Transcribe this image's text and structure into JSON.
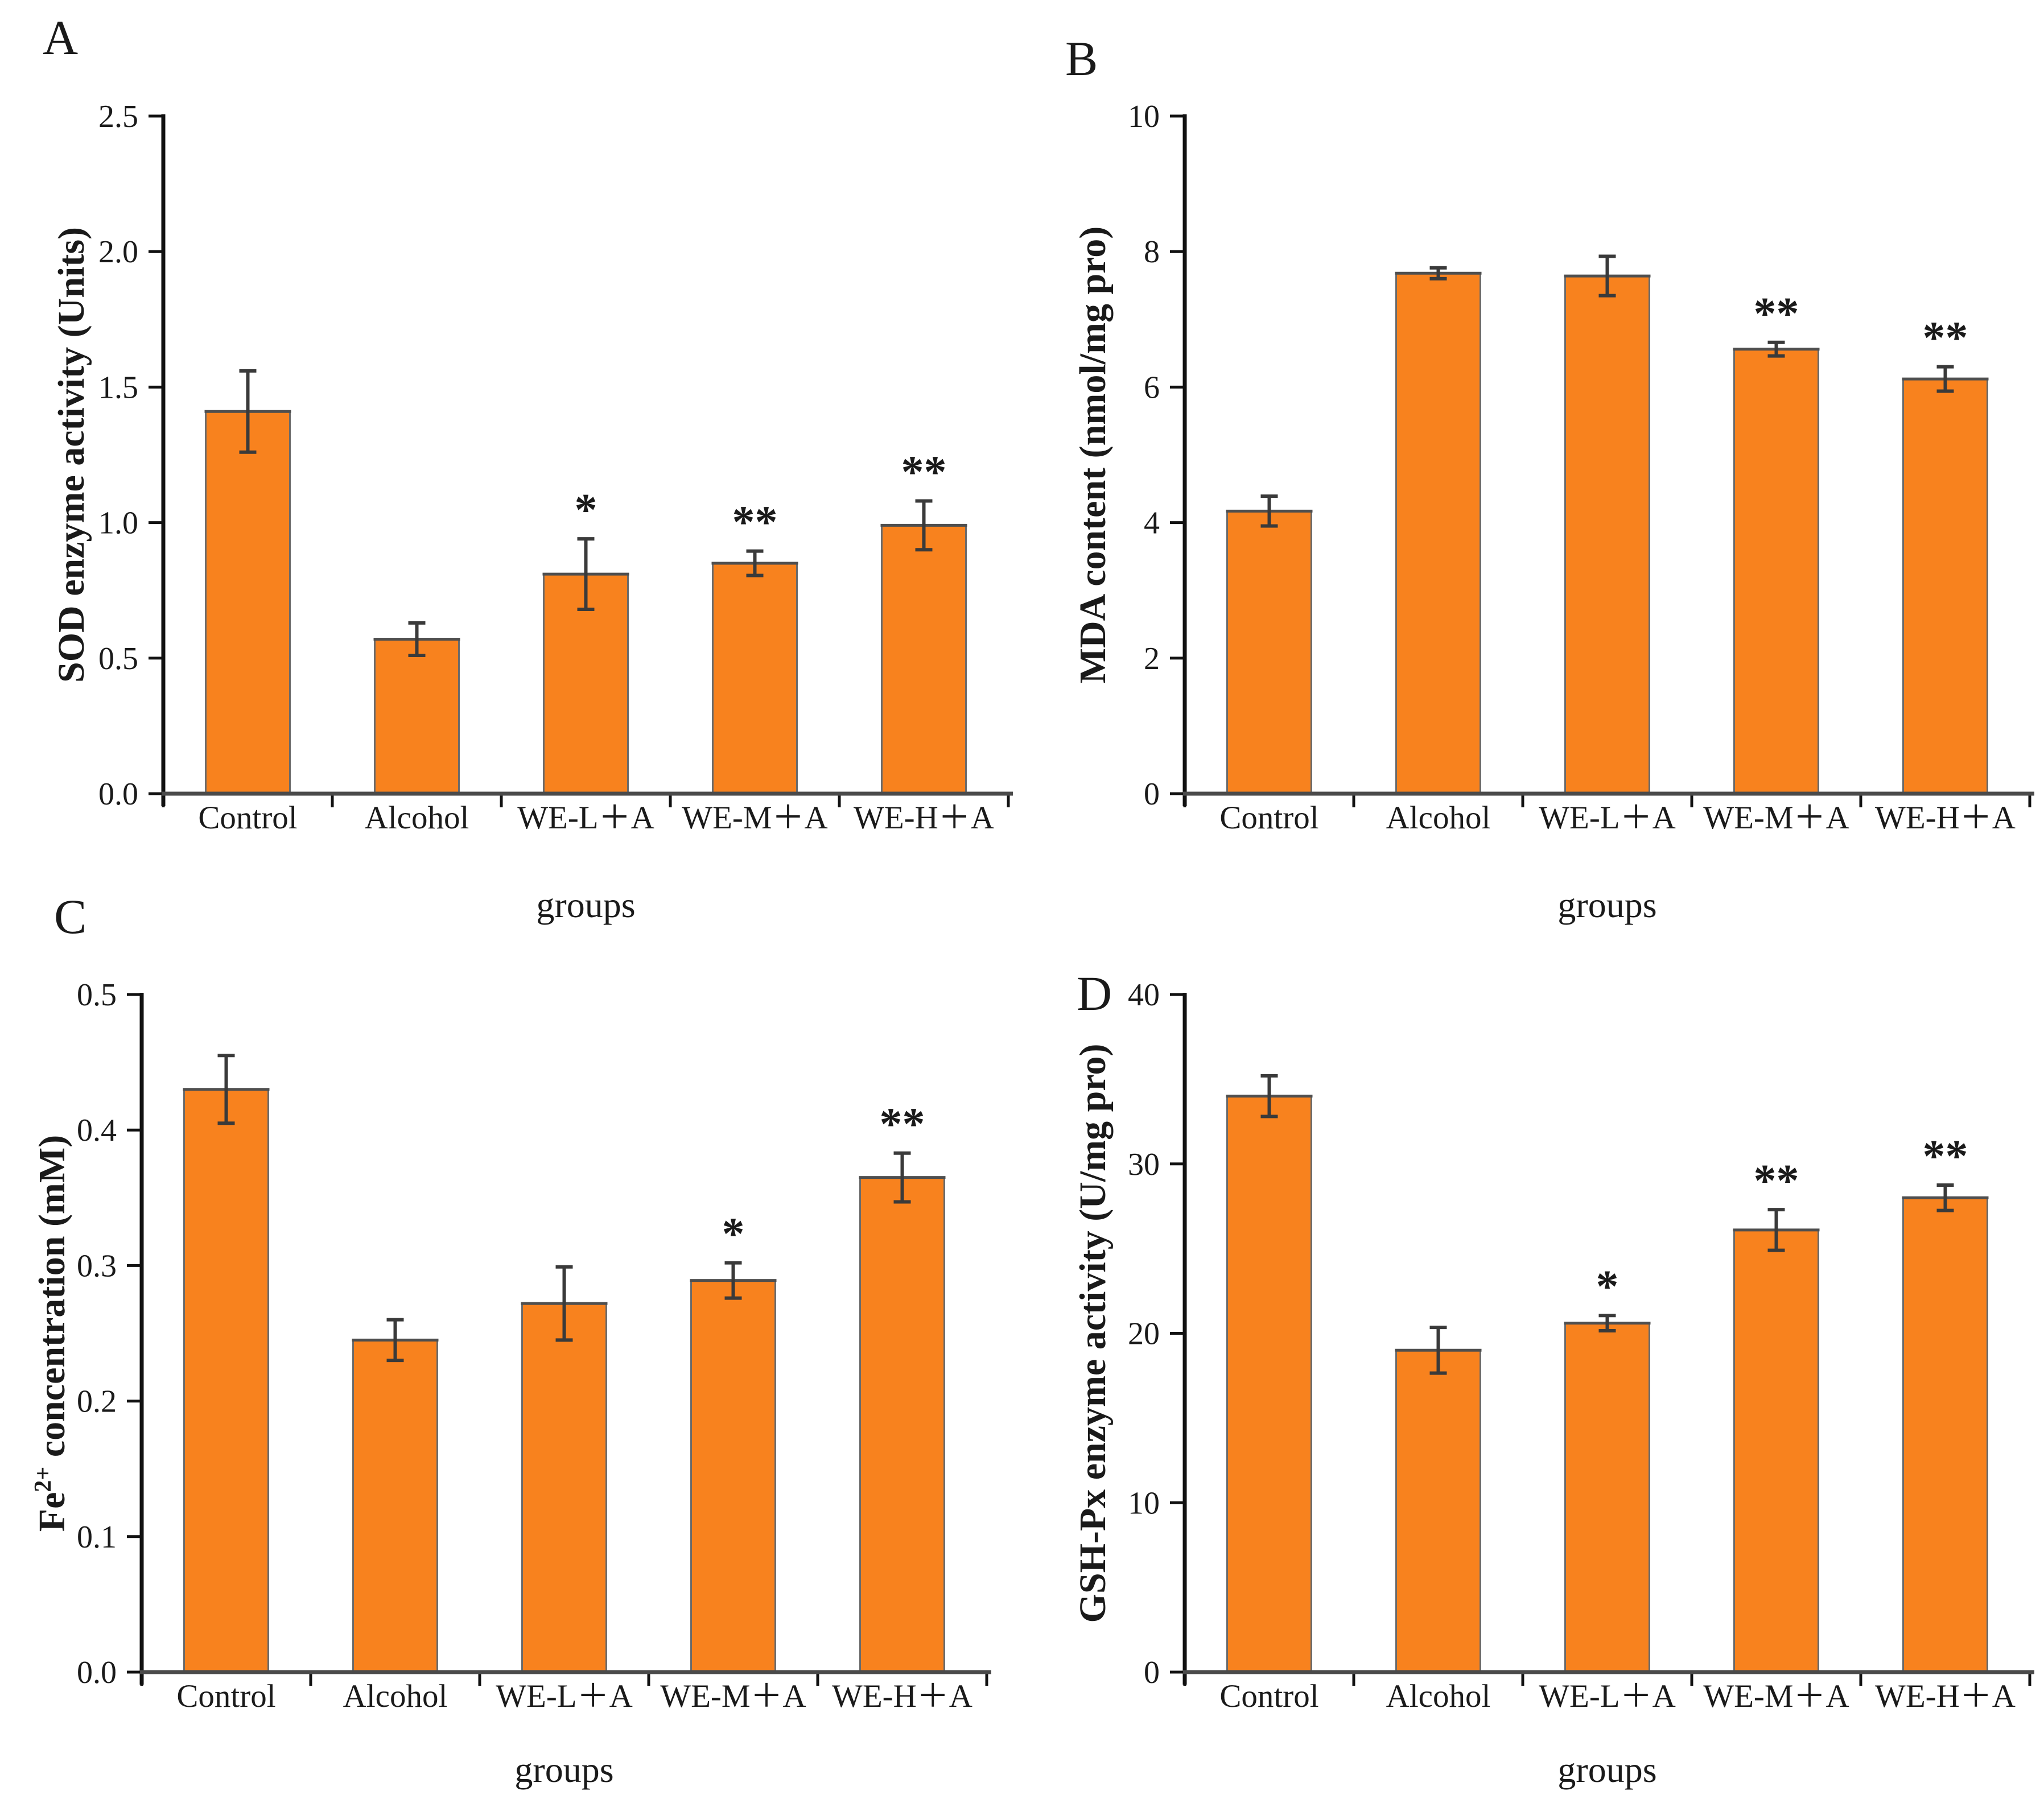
{
  "figure": {
    "background": "#ffffff",
    "bar_color": "#F8821E",
    "bar_edge_color": "#6a6a6a",
    "bar_top_color": "#4f4f4f",
    "error_bar_color": "#3a3a3a",
    "axis_color": "#111111",
    "x_axis_color": "#4a4a4a",
    "text_color": "#1a1a1a"
  },
  "chart_data": [
    {
      "type": "bar",
      "panel": "A",
      "ylabel": "SOD enzyme activity (Units)",
      "ylabel_parts": [
        {
          "t": "SOD enzyme activity (Units)",
          "sup": false
        }
      ],
      "xlabel": "groups",
      "categories": [
        "Control",
        "Alcohol",
        "WE-L＋A",
        "WE-M＋A",
        "WE-H＋A"
      ],
      "values": [
        1.41,
        0.57,
        0.81,
        0.85,
        0.99
      ],
      "errors": [
        0.15,
        0.06,
        0.13,
        0.045,
        0.09
      ],
      "sig": [
        "",
        "",
        "*",
        "**",
        "**"
      ],
      "ylim": [
        0,
        2.5
      ],
      "yticks": [
        {
          "v": 0.0,
          "label": "0.0"
        },
        {
          "v": 0.5,
          "label": "0.5"
        },
        {
          "v": 1.0,
          "label": "1.0"
        },
        {
          "v": 1.5,
          "label": "1.5"
        },
        {
          "v": 2.0,
          "label": "2.0"
        },
        {
          "v": 2.5,
          "label": "2.5"
        }
      ]
    },
    {
      "type": "bar",
      "panel": "B",
      "ylabel": "MDA content (nmol/mg pro)",
      "ylabel_parts": [
        {
          "t": "MDA content (nmol/mg pro)",
          "sup": false
        }
      ],
      "xlabel": "groups",
      "categories": [
        "Control",
        "Alcohol",
        "WE-L＋A",
        "WE-M＋A",
        "WE-H＋A"
      ],
      "values": [
        4.17,
        7.68,
        7.64,
        6.56,
        6.12
      ],
      "errors": [
        0.22,
        0.08,
        0.29,
        0.1,
        0.18
      ],
      "sig": [
        "",
        "",
        "",
        "**",
        "**"
      ],
      "ylim": [
        0,
        10
      ],
      "yticks": [
        {
          "v": 0,
          "label": "0"
        },
        {
          "v": 2,
          "label": "2"
        },
        {
          "v": 4,
          "label": "4"
        },
        {
          "v": 6,
          "label": "6"
        },
        {
          "v": 8,
          "label": "8"
        },
        {
          "v": 10,
          "label": "10"
        }
      ]
    },
    {
      "type": "bar",
      "panel": "C",
      "ylabel": "Fe2+ concentration (mM)",
      "ylabel_parts": [
        {
          "t": "Fe",
          "sup": false
        },
        {
          "t": "2+",
          "sup": true
        },
        {
          "t": " concentration (mM)",
          "sup": false
        }
      ],
      "xlabel": "groups",
      "categories": [
        "Control",
        "Alcohol",
        "WE-L＋A",
        "WE-M＋A",
        "WE-H＋A"
      ],
      "values": [
        0.43,
        0.245,
        0.272,
        0.289,
        0.365
      ],
      "errors": [
        0.025,
        0.015,
        0.027,
        0.013,
        0.018
      ],
      "sig": [
        "",
        "",
        "",
        "*",
        "**"
      ],
      "ylim": [
        0,
        0.5
      ],
      "yticks": [
        {
          "v": 0.0,
          "label": "0.0"
        },
        {
          "v": 0.1,
          "label": "0.1"
        },
        {
          "v": 0.2,
          "label": "0.2"
        },
        {
          "v": 0.3,
          "label": "0.3"
        },
        {
          "v": 0.4,
          "label": "0.4"
        },
        {
          "v": 0.5,
          "label": "0.5"
        }
      ]
    },
    {
      "type": "bar",
      "panel": "D",
      "ylabel": "GSH-Px enzyme activity (U/mg pro)",
      "ylabel_parts": [
        {
          "t": "GSH-Px enzyme activity (U/mg pro)",
          "sup": false
        }
      ],
      "xlabel": "groups",
      "categories": [
        "Control",
        "Alcohol",
        "WE-L＋A",
        "WE-M＋A",
        "WE-H＋A"
      ],
      "values": [
        34.0,
        19.0,
        20.6,
        26.1,
        28.0
      ],
      "errors": [
        1.2,
        1.35,
        0.45,
        1.2,
        0.75
      ],
      "sig": [
        "",
        "",
        "*",
        "**",
        "**"
      ],
      "ylim": [
        0,
        40
      ],
      "yticks": [
        {
          "v": 0,
          "label": "0"
        },
        {
          "v": 10,
          "label": "10"
        },
        {
          "v": 20,
          "label": "20"
        },
        {
          "v": 30,
          "label": "30"
        },
        {
          "v": 40,
          "label": "40"
        }
      ]
    }
  ]
}
